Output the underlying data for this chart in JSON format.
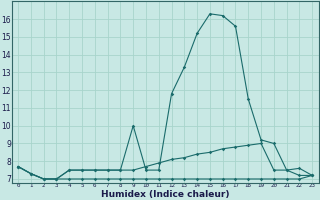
{
  "xlabel": "Humidex (Indice chaleur)",
  "ylabel": "",
  "bg_color": "#c8e8e4",
  "line_color": "#1a6b6b",
  "grid_color": "#a8d4cc",
  "x": [
    0,
    1,
    2,
    3,
    4,
    5,
    6,
    7,
    8,
    9,
    10,
    11,
    12,
    13,
    14,
    15,
    16,
    17,
    18,
    19,
    20,
    21,
    22,
    23
  ],
  "line1": [
    7.7,
    7.3,
    7.0,
    7.0,
    7.5,
    7.5,
    7.5,
    7.5,
    7.5,
    10.0,
    7.5,
    7.5,
    11.8,
    13.3,
    15.2,
    16.3,
    16.2,
    15.6,
    11.5,
    9.2,
    9.0,
    7.5,
    7.6,
    7.2
  ],
  "line2": [
    7.7,
    7.3,
    7.0,
    7.0,
    7.5,
    7.5,
    7.5,
    7.5,
    7.5,
    7.5,
    7.7,
    7.9,
    8.1,
    8.2,
    8.4,
    8.5,
    8.7,
    8.8,
    8.9,
    9.0,
    7.5,
    7.5,
    7.2,
    7.2
  ],
  "line3": [
    7.7,
    7.3,
    7.0,
    7.0,
    7.0,
    7.0,
    7.0,
    7.0,
    7.0,
    7.0,
    7.0,
    7.0,
    7.0,
    7.0,
    7.0,
    7.0,
    7.0,
    7.0,
    7.0,
    7.0,
    7.0,
    7.0,
    7.0,
    7.2
  ],
  "ylim": [
    6.8,
    17.0
  ],
  "yticks": [
    7,
    8,
    9,
    10,
    11,
    12,
    13,
    14,
    15,
    16
  ],
  "xticks": [
    0,
    1,
    2,
    3,
    4,
    5,
    6,
    7,
    8,
    9,
    10,
    11,
    12,
    13,
    14,
    15,
    16,
    17,
    18,
    19,
    20,
    21,
    22,
    23
  ],
  "xlabels": [
    "0",
    "1",
    "2",
    "3",
    "4",
    "5",
    "6",
    "7",
    "8",
    "9",
    "10",
    "11",
    "12",
    "13",
    "14",
    "15",
    "16",
    "17",
    "18",
    "19",
    "20",
    "21",
    "22",
    "23"
  ]
}
